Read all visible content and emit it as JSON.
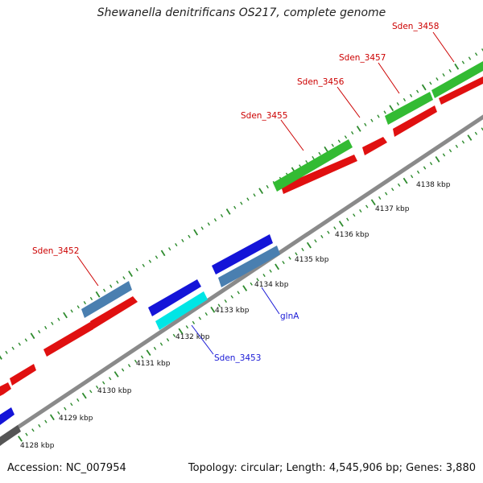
{
  "title": "Shewanella denitrificans OS217, complete genome",
  "footer": {
    "accession": "Accession: NC_007954",
    "summary": "Topology: circular; Length: 4,545,906 bp; Genes: 3,880"
  },
  "colors": {
    "backbone": "#8a8a8a",
    "tick": "#2e8b2e",
    "label_red": "#cc0000",
    "label_blue": "#1a1ad6"
  },
  "chart_data": {
    "type": "genome-map",
    "axis_unit": "kbp",
    "tick_labels": [
      "4128 kbp",
      "4129 kbp",
      "4130 kbp",
      "4131 kbp",
      "4132 kbp",
      "4133 kbp",
      "4134 kbp",
      "4135 kbp",
      "4136 kbp",
      "4137 kbp",
      "4138 kbp"
    ],
    "genes": [
      {
        "label": "Sden_3452",
        "label_color": "red"
      },
      {
        "label": "Sden_3453",
        "label_color": "blue"
      },
      {
        "label": "glnA",
        "label_color": "blue"
      },
      {
        "label": "Sden_3455",
        "label_color": "red"
      },
      {
        "label": "Sden_3456",
        "label_color": "red"
      },
      {
        "label": "Sden_3457",
        "label_color": "red"
      },
      {
        "label": "Sden_3458",
        "label_color": "red"
      }
    ]
  }
}
